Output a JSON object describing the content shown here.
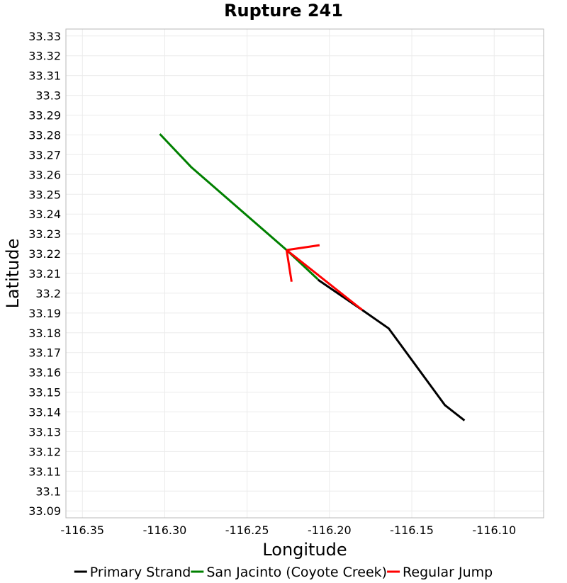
{
  "chart_data": {
    "type": "line",
    "title": "Rupture 241",
    "xlabel": "Longitude",
    "ylabel": "Latitude",
    "xlim": [
      -116.36,
      -116.07
    ],
    "ylim": [
      33.0865,
      33.3335
    ],
    "x_ticks": [
      "-116.35",
      "-116.30",
      "-116.25",
      "-116.20",
      "-116.15",
      "-116.10"
    ],
    "y_ticks": [
      "33.33",
      "33.32",
      "33.31",
      "33.3",
      "33.29",
      "33.28",
      "33.27",
      "33.26",
      "33.25",
      "33.24",
      "33.23",
      "33.22",
      "33.21",
      "33.2",
      "33.19",
      "33.18",
      "33.17",
      "33.16",
      "33.15",
      "33.14",
      "33.13",
      "33.12",
      "33.11",
      "33.1",
      "33.09"
    ],
    "grid": true,
    "legend_position": "bottom",
    "series": [
      {
        "name": "Primary Strand",
        "color": "#000000",
        "segments": [
          [
            [
              -116.207,
              33.2068
            ],
            [
              -116.18,
              33.1915
            ],
            [
              -116.164,
              33.1822
            ],
            [
              -116.13,
              33.1435
            ],
            [
              -116.118,
              33.1357
            ]
          ]
        ]
      },
      {
        "name": "San Jacinto (Coyote Creek)",
        "color": "#008000",
        "segments": [
          [
            [
              -116.303,
              33.2805
            ],
            [
              -116.284,
              33.2638
            ],
            [
              -116.226,
              33.2218
            ],
            [
              -116.207,
              33.207
            ]
          ]
        ]
      },
      {
        "name": "Regular Jump",
        "color": "#ff0000",
        "segments": [
          [
            [
              -116.226,
              33.2218
            ],
            [
              -116.18,
              33.1915
            ]
          ],
          [
            [
              -116.226,
              33.2218
            ],
            [
              -116.206,
              33.2243
            ]
          ],
          [
            [
              -116.226,
              33.2218
            ],
            [
              -116.223,
              33.2058
            ]
          ]
        ]
      }
    ]
  }
}
